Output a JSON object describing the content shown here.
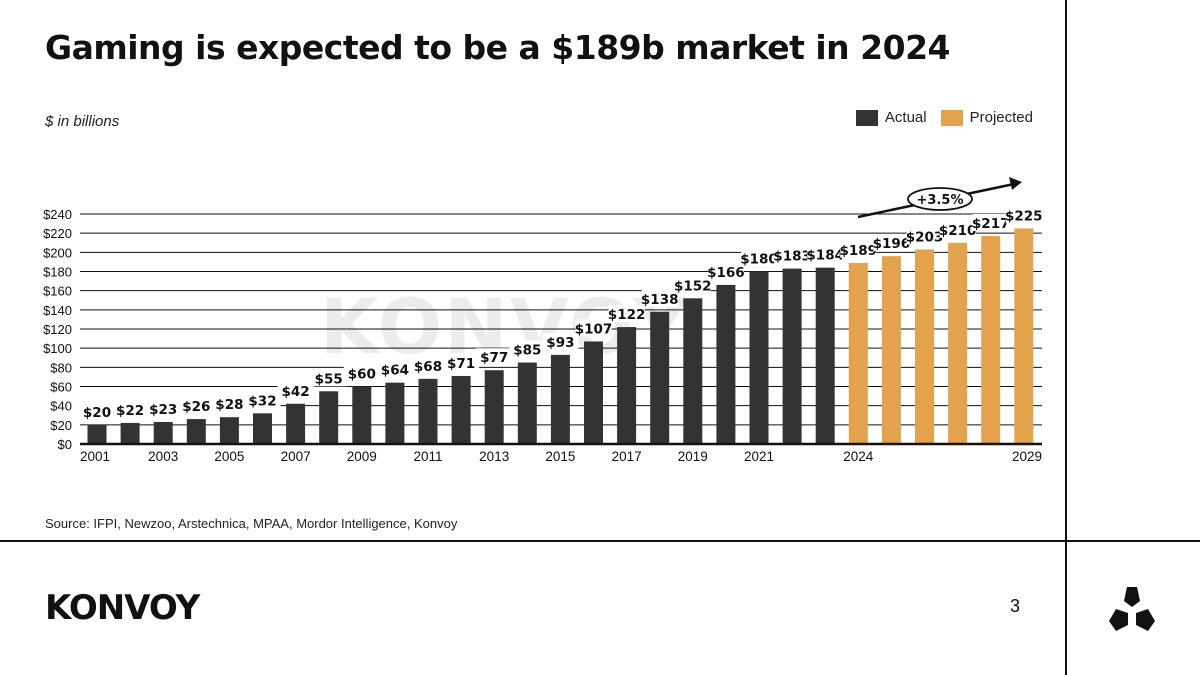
{
  "title": "Gaming is expected to be a $189b market in 2024",
  "subtitle": "$ in billions",
  "source": "Source: IFPI, Newzoo, Arstechnica, MPAA, Mordor Intelligence, Konvoy",
  "brand": "KONVOY",
  "watermark": "KONVOY",
  "page_number": "3",
  "colors": {
    "actual": "#333333",
    "projected": "#E3A34C"
  },
  "legend": [
    {
      "label": "Actual",
      "color": "#333333"
    },
    {
      "label": "Projected",
      "color": "#E3A34C"
    }
  ],
  "annotation": {
    "label": "+3.5%"
  },
  "chart_data": {
    "type": "bar",
    "title": "Gaming is expected to be a $189b market in 2024",
    "ylabel": "$ in billions",
    "ylim": [
      0,
      240
    ],
    "yticks": [
      "$0",
      "$20",
      "$40",
      "$60",
      "$80",
      "$100",
      "$120",
      "$140",
      "$160",
      "$180",
      "$200",
      "$220",
      "$240"
    ],
    "x": [
      2001,
      2002,
      2003,
      2004,
      2005,
      2006,
      2007,
      2008,
      2009,
      2010,
      2011,
      2012,
      2013,
      2014,
      2015,
      2016,
      2017,
      2018,
      2019,
      2020,
      2021,
      2022,
      2023,
      2024,
      2025,
      2026,
      2027,
      2028,
      2029
    ],
    "x_tick_labels": [
      "2001",
      "2003",
      "2005",
      "2007",
      "2009",
      "2011",
      "2013",
      "2015",
      "2017",
      "2019",
      "2021",
      "2024",
      "2029"
    ],
    "series": [
      {
        "name": "Actual",
        "values": [
          20,
          22,
          23,
          26,
          28,
          32,
          42,
          55,
          60,
          64,
          68,
          71,
          77,
          85,
          93,
          107,
          122,
          138,
          152,
          166,
          180,
          183,
          184,
          null,
          null,
          null,
          null,
          null,
          null
        ]
      },
      {
        "name": "Projected",
        "values": [
          null,
          null,
          null,
          null,
          null,
          null,
          null,
          null,
          null,
          null,
          null,
          null,
          null,
          null,
          null,
          null,
          null,
          null,
          null,
          null,
          null,
          null,
          null,
          189,
          196,
          203,
          210,
          217,
          225
        ]
      }
    ],
    "data_labels": [
      "$20",
      "$22",
      "$23",
      "$26",
      "$28",
      "$32",
      "$42",
      "$55",
      "$60",
      "$64",
      "$68",
      "$71",
      "$77",
      "$85",
      "$93",
      "$107",
      "$122",
      "$138",
      "$152",
      "$166",
      "$180",
      "$183",
      "$184",
      "$189",
      "$196",
      "$203",
      "$210",
      "$217",
      "$225"
    ],
    "annotations": [
      "+3.5%"
    ],
    "grid": true,
    "legend_position": "top-right"
  }
}
